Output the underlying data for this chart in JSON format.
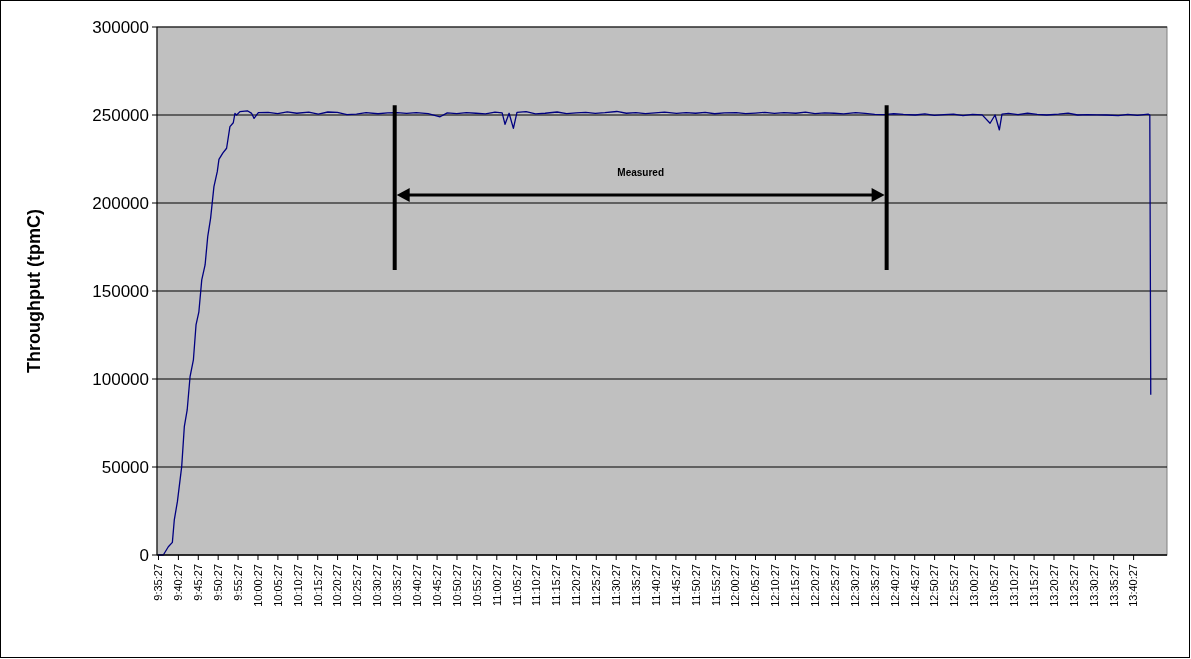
{
  "chart_data": {
    "type": "line",
    "ylabel": "Throughput (tpmC)",
    "x": [
      9.59,
      9.611,
      9.632,
      9.649,
      9.657,
      9.67,
      9.688,
      9.699,
      9.711,
      9.723,
      9.737,
      9.748,
      9.76,
      9.772,
      9.786,
      9.797,
      9.809,
      9.823,
      9.837,
      9.844,
      9.86,
      9.876,
      9.89,
      9.904,
      9.911,
      9.918,
      9.932,
      9.963,
      9.981,
      9.991,
      10.009,
      10.05,
      10.09,
      10.13,
      10.17,
      10.22,
      10.26,
      10.3,
      10.34,
      10.38,
      10.42,
      10.46,
      10.51,
      10.55,
      10.59,
      10.63,
      10.67,
      10.72,
      10.77,
      10.8,
      10.84,
      10.88,
      10.92,
      10.96,
      11.0,
      11.03,
      11.042,
      11.059,
      11.077,
      11.092,
      11.13,
      11.17,
      11.21,
      11.26,
      11.3,
      11.34,
      11.38,
      11.42,
      11.46,
      11.51,
      11.55,
      11.59,
      11.63,
      11.67,
      11.71,
      11.76,
      11.8,
      11.84,
      11.88,
      11.92,
      11.96,
      12.01,
      12.05,
      12.09,
      12.13,
      12.17,
      12.21,
      12.26,
      12.3,
      12.34,
      12.38,
      12.42,
      12.46,
      12.51,
      12.55,
      12.59,
      12.63,
      12.67,
      12.71,
      12.76,
      12.8,
      12.84,
      12.88,
      12.92,
      12.96,
      13.0,
      13.04,
      13.073,
      13.094,
      13.112,
      13.123,
      13.15,
      13.19,
      13.23,
      13.27,
      13.31,
      13.36,
      13.4,
      13.44,
      13.48,
      13.52,
      13.56,
      13.61,
      13.65,
      13.69,
      13.735,
      13.742,
      13.746
    ],
    "series": [
      {
        "color": "#000080",
        "values": [
          0,
          0,
          4700,
          7200,
          19900,
          30300,
          50200,
          72900,
          82400,
          101300,
          110800,
          130700,
          138200,
          156300,
          164800,
          180900,
          191300,
          209300,
          217800,
          224800,
          228300,
          231100,
          243400,
          245600,
          250900,
          250000,
          251900,
          252400,
          250900,
          248100,
          251300,
          251500,
          250800,
          251800,
          251000,
          251600,
          250500,
          251700,
          251500,
          250200,
          250500,
          251300,
          250700,
          251200,
          251300,
          250900,
          251400,
          250800,
          249000,
          251200,
          250800,
          251400,
          251000,
          250600,
          251600,
          251200,
          244700,
          251000,
          242400,
          251500,
          251900,
          250600,
          251000,
          251700,
          250800,
          251200,
          251500,
          250900,
          251300,
          252000,
          251000,
          251400,
          250800,
          251200,
          251600,
          250900,
          251300,
          251000,
          251500,
          250700,
          251200,
          251400,
          250800,
          251100,
          251500,
          250900,
          251300,
          251000,
          251600,
          250800,
          251200,
          251000,
          250600,
          251400,
          250900,
          250400,
          250200,
          250700,
          250300,
          250000,
          250600,
          249800,
          250200,
          250500,
          249600,
          250400,
          250100,
          245300,
          250000,
          241500,
          250500,
          250900,
          250200,
          251000,
          250300,
          250000,
          250500,
          251100,
          250000,
          250200,
          250100,
          250000,
          249700,
          250300,
          249800,
          250500,
          250000,
          91000
        ]
      }
    ],
    "xlim": [
      9.5846,
      13.814
    ],
    "xticks": [
      {
        "value": 9.5908,
        "label": "9:35:27"
      },
      {
        "value": 9.6742,
        "label": "9:40:27"
      },
      {
        "value": 9.7575,
        "label": "9:45:27"
      },
      {
        "value": 9.8408,
        "label": "9:50:27"
      },
      {
        "value": 9.9242,
        "label": "9:55:27"
      },
      {
        "value": 10.0075,
        "label": "10:00:27"
      },
      {
        "value": 10.0908,
        "label": "10:05:27"
      },
      {
        "value": 10.1742,
        "label": "10:10:27"
      },
      {
        "value": 10.2575,
        "label": "10:15:27"
      },
      {
        "value": 10.3408,
        "label": "10:20:27"
      },
      {
        "value": 10.4242,
        "label": "10:25:27"
      },
      {
        "value": 10.5075,
        "label": "10:30:27"
      },
      {
        "value": 10.5908,
        "label": "10:35:27"
      },
      {
        "value": 10.6742,
        "label": "10:40:27"
      },
      {
        "value": 10.7575,
        "label": "10:45:27"
      },
      {
        "value": 10.8408,
        "label": "10:50:27"
      },
      {
        "value": 10.9242,
        "label": "10:55:27"
      },
      {
        "value": 11.0075,
        "label": "11:00:27"
      },
      {
        "value": 11.0908,
        "label": "11:05:27"
      },
      {
        "value": 11.1742,
        "label": "11:10:27"
      },
      {
        "value": 11.2575,
        "label": "11:15:27"
      },
      {
        "value": 11.3408,
        "label": "11:20:27"
      },
      {
        "value": 11.4242,
        "label": "11:25:27"
      },
      {
        "value": 11.5075,
        "label": "11:30:27"
      },
      {
        "value": 11.5908,
        "label": "11:35:27"
      },
      {
        "value": 11.6742,
        "label": "11:40:27"
      },
      {
        "value": 11.7575,
        "label": "11:45:27"
      },
      {
        "value": 11.8408,
        "label": "11:50:27"
      },
      {
        "value": 11.9242,
        "label": "11:55:27"
      },
      {
        "value": 12.0075,
        "label": "12:00:27"
      },
      {
        "value": 12.0908,
        "label": "12:05:27"
      },
      {
        "value": 12.1742,
        "label": "12:10:27"
      },
      {
        "value": 12.2575,
        "label": "12:15:27"
      },
      {
        "value": 12.3408,
        "label": "12:20:27"
      },
      {
        "value": 12.4242,
        "label": "12:25:27"
      },
      {
        "value": 12.5075,
        "label": "12:30:27"
      },
      {
        "value": 12.5908,
        "label": "12:35:27"
      },
      {
        "value": 12.6742,
        "label": "12:40:27"
      },
      {
        "value": 12.7575,
        "label": "12:45:27"
      },
      {
        "value": 12.8408,
        "label": "12:50:27"
      },
      {
        "value": 12.9242,
        "label": "12:55:27"
      },
      {
        "value": 13.0075,
        "label": "13:00:27"
      },
      {
        "value": 13.0908,
        "label": "13:05:27"
      },
      {
        "value": 13.1742,
        "label": "13:10:27"
      },
      {
        "value": 13.2575,
        "label": "13:15:27"
      },
      {
        "value": 13.3408,
        "label": "13:20:27"
      },
      {
        "value": 13.4242,
        "label": "13:25:27"
      },
      {
        "value": 13.5075,
        "label": "13:30:27"
      },
      {
        "value": 13.5908,
        "label": "13:35:27"
      },
      {
        "value": 13.6742,
        "label": "13:40:27"
      }
    ],
    "ylim": [
      0,
      300000
    ],
    "yticks": [
      0,
      50000,
      100000,
      150000,
      200000,
      250000,
      300000
    ],
    "grid": "y",
    "marker": "none",
    "line_style": "solid",
    "ref_lines": [
      {
        "axis": "x",
        "value": 10.58,
        "color": "#000000"
      },
      {
        "axis": "x",
        "value": 12.64,
        "color": "#000000"
      }
    ],
    "annotations": [
      "Measured"
    ]
  }
}
